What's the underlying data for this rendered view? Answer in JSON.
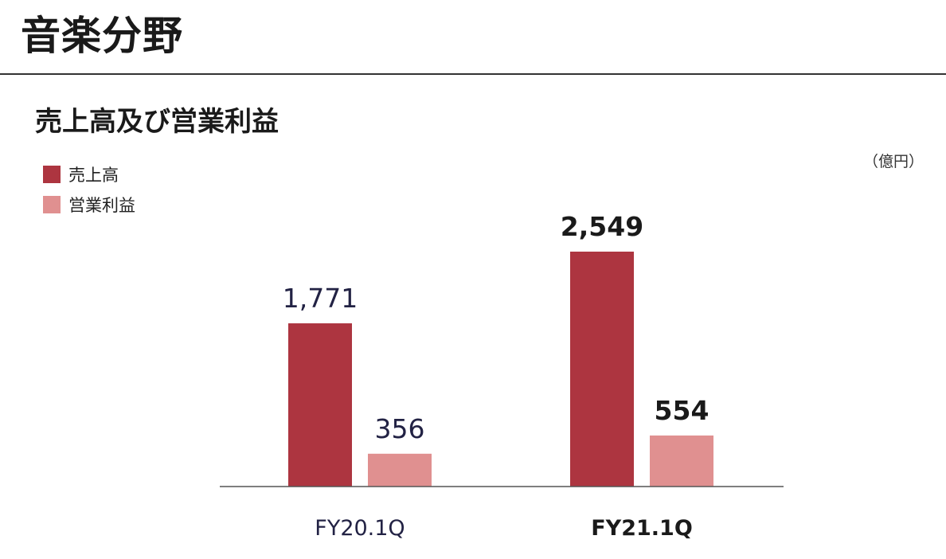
{
  "page_title": "音楽分野",
  "colors": {
    "sales": "#ad3540",
    "profit": "#e09090",
    "axis": "#555555",
    "text": "#222244"
  },
  "chart_data": {
    "type": "bar",
    "title": "売上高及び営業利益",
    "unit": "（億円）",
    "categories": [
      "FY20.1Q",
      "FY21.1Q"
    ],
    "emphasized_category": "FY21.1Q",
    "series": [
      {
        "name": "売上高",
        "values": [
          1771,
          2549
        ],
        "labels": [
          "1,771",
          "2,549"
        ]
      },
      {
        "name": "営業利益",
        "values": [
          356,
          554
        ],
        "labels": [
          "356",
          "554"
        ]
      }
    ],
    "ylim": [
      0,
      2549
    ],
    "grid": false,
    "legend_position": "top-left"
  }
}
